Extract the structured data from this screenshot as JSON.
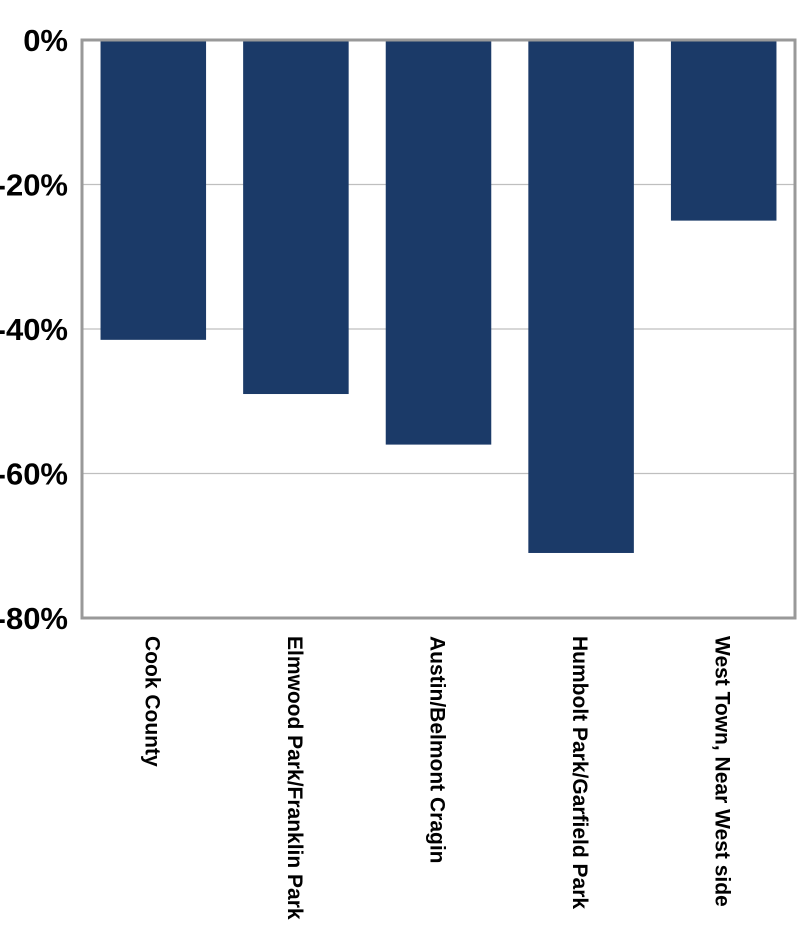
{
  "chart_data": {
    "type": "bar",
    "title": "",
    "xlabel": "",
    "ylabel": "",
    "categories": [
      "Cook County",
      "Elmwood Park/Franklin Park",
      "Austin/Belmont Cragin",
      "Humbolt Park/Garfield Park",
      "West Town, Near West side"
    ],
    "values": [
      -41.5,
      -49,
      -56,
      -71,
      -25
    ],
    "ylim": [
      -80,
      0
    ],
    "yticks": [
      0,
      -20,
      -40,
      -60,
      -80
    ],
    "ytick_labels": [
      "0%",
      "-20%",
      "-40%",
      "-60%",
      "-80%"
    ],
    "grid": true,
    "legend": "none",
    "colors": {
      "bar": "#1b3a68",
      "grid": "#bfbfbf",
      "axis": "#999999"
    }
  }
}
